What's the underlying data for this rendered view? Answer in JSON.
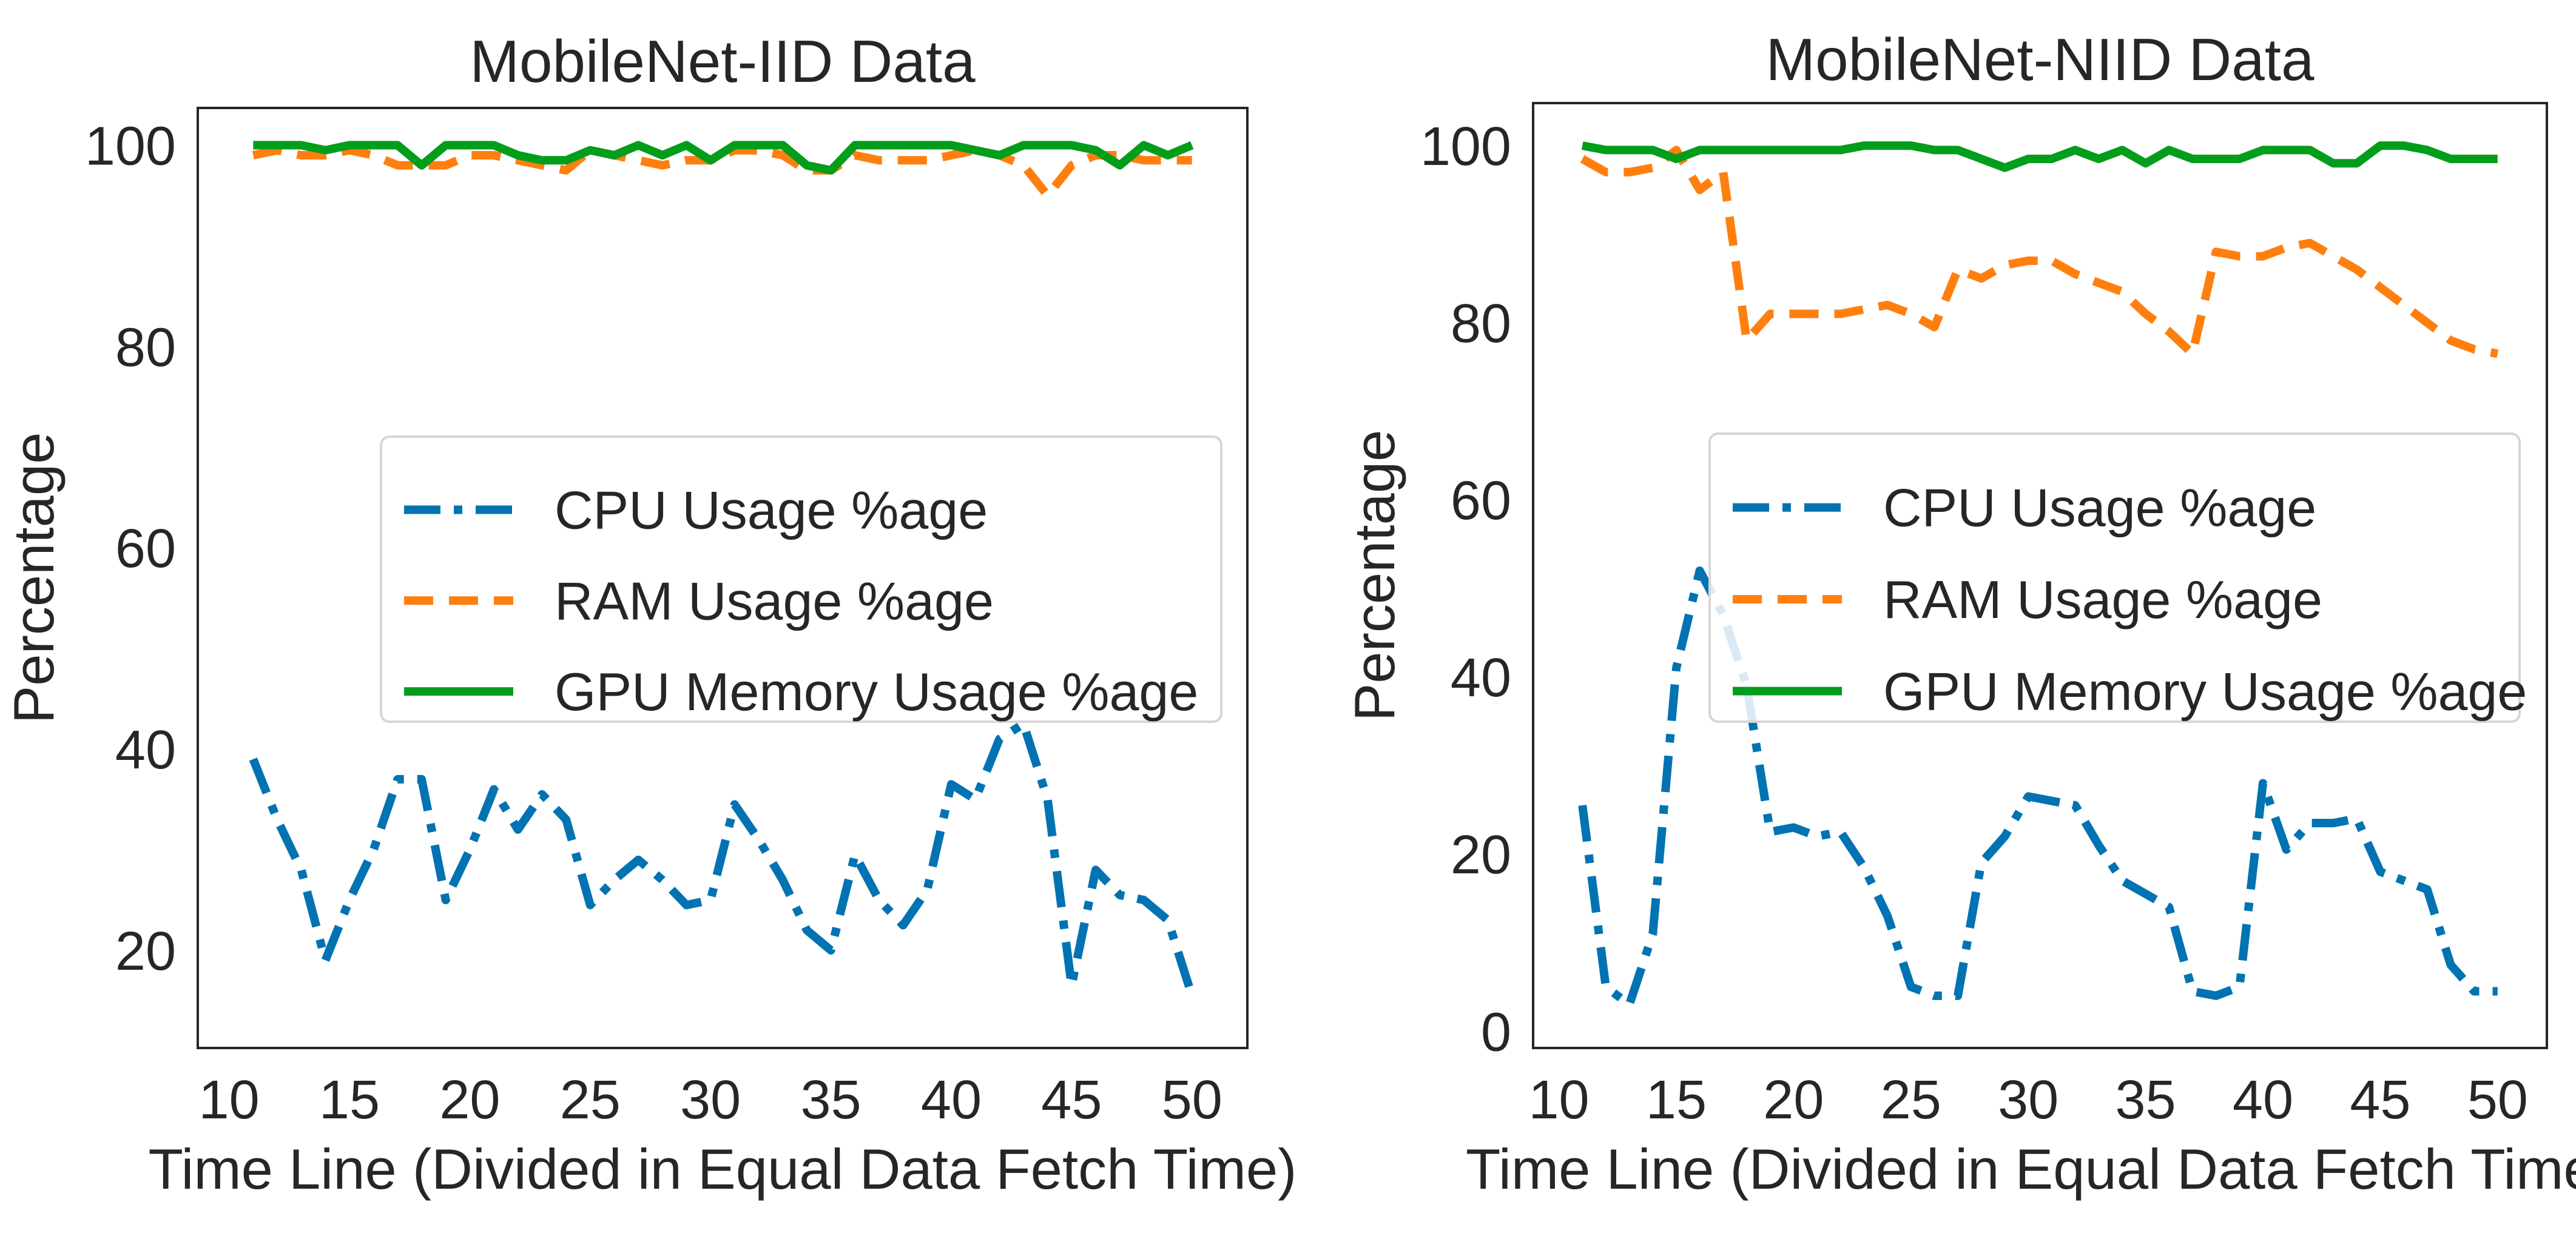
{
  "chart_data": [
    {
      "type": "line",
      "title": "MobileNet-IID Data",
      "xlabel": "Time Line (Divided in Equal Data Fetch Time)",
      "ylabel": "Percentage",
      "xlim": [
        8.7,
        52.3
      ],
      "ylim": [
        10.3,
        103.7
      ],
      "xticks": [
        "10",
        "15",
        "20",
        "25",
        "30",
        "35",
        "40",
        "45",
        "50"
      ],
      "yticks": [
        "20",
        "40",
        "60",
        "80",
        "100"
      ],
      "legend_position": "center-right",
      "x": [
        11,
        12,
        13,
        14,
        15,
        16,
        17,
        18,
        19,
        20,
        21,
        22,
        23,
        24,
        25,
        26,
        27,
        28,
        29,
        30,
        31,
        32,
        33,
        34,
        35,
        36,
        37,
        38,
        39,
        40,
        41,
        42,
        43,
        44,
        45,
        46,
        47,
        48,
        49,
        50
      ],
      "series": [
        {
          "name": "CPU Usage %age",
          "color": "#0173b2",
          "style": "dashdot",
          "values": [
            39,
            33,
            28,
            19,
            25,
            30,
            37,
            37,
            25,
            30,
            36,
            32,
            35.5,
            33,
            24.5,
            27,
            29,
            27,
            24.5,
            25,
            34.5,
            31,
            27,
            22,
            20,
            29.5,
            25,
            22.5,
            26,
            36.5,
            35,
            41,
            42.5,
            35,
            16.5,
            28,
            25.5,
            25,
            23,
            15.5
          ]
        },
        {
          "name": "RAM Usage %age",
          "color": "#ff7f0e",
          "style": "dashed",
          "values": [
            99,
            99.5,
            99,
            99,
            99.5,
            99,
            98,
            98,
            98,
            99,
            99,
            98.5,
            98,
            97.5,
            99.5,
            99,
            98.5,
            98,
            98.5,
            98.5,
            99.5,
            99.5,
            99,
            97.5,
            97.5,
            99,
            98.5,
            98.5,
            98.5,
            99,
            99.5,
            99,
            98,
            95,
            98,
            99,
            99,
            98.5,
            98.5,
            98.5
          ]
        },
        {
          "name": "GPU Memory Usage %age",
          "color": "#029e1b",
          "style": "solid",
          "values": [
            100,
            100,
            100,
            99.5,
            100,
            100,
            100,
            98,
            100,
            100,
            100,
            99,
            98.5,
            98.5,
            99.5,
            99,
            100,
            99,
            100,
            98.5,
            100,
            100,
            100,
            98,
            97.5,
            100,
            100,
            100,
            100,
            100,
            99.5,
            99,
            100,
            100,
            100,
            99.5,
            98,
            100,
            99,
            100
          ]
        }
      ]
    },
    {
      "type": "line",
      "title": "MobileNet-NIID Data",
      "xlabel": "Time Line (Divided in Equal Data Fetch Time)",
      "ylabel": "Percentage",
      "xlim": [
        8.9,
        52.1
      ],
      "ylim": [
        -1.9,
        104.8
      ],
      "xticks": [
        "10",
        "15",
        "20",
        "25",
        "30",
        "35",
        "40",
        "45",
        "50"
      ],
      "yticks": [
        "0",
        "20",
        "40",
        "60",
        "80",
        "100"
      ],
      "legend_position": "center-right",
      "x": [
        11,
        12,
        13,
        14,
        15,
        16,
        17,
        18,
        19,
        20,
        21,
        22,
        23,
        24,
        25,
        26,
        27,
        28,
        29,
        30,
        31,
        32,
        33,
        34,
        35,
        36,
        37,
        38,
        39,
        40,
        41,
        42,
        43,
        44,
        45,
        46,
        47,
        48,
        49,
        50
      ],
      "series": [
        {
          "name": "CPU Usage %age",
          "color": "#0173b2",
          "style": "dashdot",
          "values": [
            25.5,
            5,
            3,
            11,
            41,
            52,
            47,
            39,
            22.5,
            23,
            22,
            22.5,
            18.5,
            13,
            5,
            4,
            4,
            19,
            22,
            26.5,
            26,
            25.5,
            21,
            17,
            15.5,
            14,
            4.5,
            4,
            5,
            28,
            20.5,
            23.5,
            23.5,
            24,
            18,
            17,
            16,
            7.5,
            4.5,
            4.5
          ]
        },
        {
          "name": "RAM Usage %age",
          "color": "#ff7f0e",
          "style": "dashed",
          "values": [
            98.5,
            97,
            97,
            97.5,
            99.5,
            95,
            97,
            78,
            81,
            81,
            81,
            81,
            81.5,
            82,
            81,
            79.5,
            86,
            85,
            86.5,
            87,
            87,
            85.5,
            84.5,
            83.5,
            81,
            79,
            76.5,
            88,
            87.5,
            87.5,
            88.5,
            89,
            87.5,
            86,
            84,
            82,
            80,
            78,
            77,
            76.5
          ]
        },
        {
          "name": "GPU Memory Usage %age",
          "color": "#029e1b",
          "style": "solid",
          "values": [
            100,
            99.5,
            99.5,
            99.5,
            98.5,
            99.5,
            99.5,
            99.5,
            99.5,
            99.5,
            99.5,
            99.5,
            100,
            100,
            100,
            99.5,
            99.5,
            98.5,
            97.5,
            98.5,
            98.5,
            99.5,
            98.5,
            99.5,
            98,
            99.5,
            98.5,
            98.5,
            98.5,
            99.5,
            99.5,
            99.5,
            98,
            98,
            100,
            100,
            99.5,
            98.5,
            98.5,
            98.5
          ]
        }
      ]
    }
  ]
}
